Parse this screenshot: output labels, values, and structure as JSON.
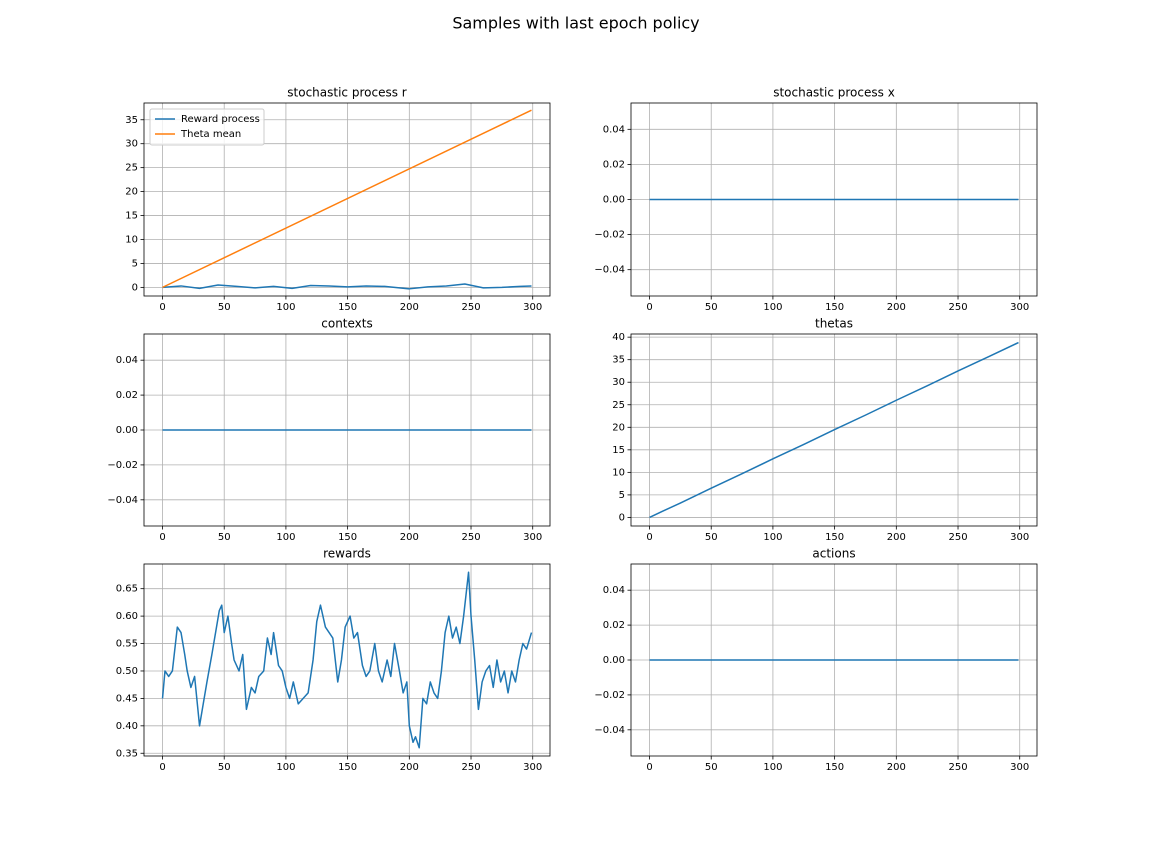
{
  "title": "Samples with last epoch policy",
  "chart_data": [
    {
      "type": "line",
      "title": "stochastic process r",
      "xlim": [
        -15,
        314
      ],
      "ylim": [
        -1.8,
        38.5
      ],
      "xticks": [
        0,
        50,
        100,
        150,
        200,
        250,
        300
      ],
      "yticks": [
        0,
        5,
        10,
        15,
        20,
        25,
        30,
        35
      ],
      "grid": true,
      "legend": "upper left",
      "series": [
        {
          "name": "Reward process",
          "color": "#1f77b4",
          "x": [
            0,
            15,
            30,
            45,
            60,
            75,
            90,
            105,
            120,
            135,
            150,
            165,
            180,
            200,
            215,
            230,
            245,
            260,
            275,
            290,
            299
          ],
          "values": [
            0,
            0.3,
            -0.2,
            0.5,
            0.2,
            -0.1,
            0.2,
            -0.2,
            0.4,
            0.3,
            0.1,
            0.3,
            0.2,
            -0.3,
            0.1,
            0.3,
            0.7,
            -0.1,
            0,
            0.2,
            0.3
          ]
        },
        {
          "name": "Theta mean",
          "color": "#ff7f0e",
          "x": [
            0,
            299
          ],
          "values": [
            0,
            37
          ]
        }
      ]
    },
    {
      "type": "line",
      "title": "stochastic process x",
      "xlim": [
        -15,
        314
      ],
      "ylim": [
        -0.055,
        0.055
      ],
      "xticks": [
        0,
        50,
        100,
        150,
        200,
        250,
        300
      ],
      "yticks": [
        {
          "value": -0.04,
          "label": "−0.04"
        },
        {
          "value": -0.02,
          "label": "−0.02"
        },
        {
          "value": 0,
          "label": "0.00"
        },
        0.02,
        0.04
      ],
      "grid": true,
      "series": [
        {
          "color": "#1f77b4",
          "x": [
            0,
            299
          ],
          "values": [
            0,
            0
          ]
        }
      ]
    },
    {
      "type": "line",
      "title": "contexts",
      "xlim": [
        -15,
        314
      ],
      "ylim": [
        -0.055,
        0.055
      ],
      "xticks": [
        0,
        50,
        100,
        150,
        200,
        250,
        300
      ],
      "yticks": [
        {
          "value": -0.04,
          "label": "−0.04"
        },
        {
          "value": -0.02,
          "label": "−0.02"
        },
        {
          "value": 0,
          "label": "0.00"
        },
        0.02,
        0.04
      ],
      "grid": true,
      "series": [
        {
          "color": "#1f77b4",
          "x": [
            0,
            299
          ],
          "values": [
            0,
            0
          ]
        }
      ]
    },
    {
      "type": "line",
      "title": "thetas",
      "xlim": [
        -15,
        314
      ],
      "ylim": [
        -1.9,
        40.7
      ],
      "xticks": [
        0,
        50,
        100,
        150,
        200,
        250,
        300
      ],
      "yticks": [
        0,
        5,
        10,
        15,
        20,
        25,
        30,
        35,
        40
      ],
      "grid": true,
      "series": [
        {
          "color": "#1f77b4",
          "x": [
            0,
            10,
            25,
            50,
            75,
            100,
            125,
            150,
            175,
            200,
            225,
            250,
            275,
            299
          ],
          "values": [
            0,
            1.3,
            3.2,
            6.5,
            9.7,
            13,
            16.2,
            19.5,
            22.7,
            26,
            29.2,
            32.5,
            35.7,
            38.8
          ]
        }
      ]
    },
    {
      "type": "line",
      "title": "rewards",
      "xlim": [
        -15,
        314
      ],
      "ylim": [
        0.345,
        0.695
      ],
      "xticks": [
        0,
        50,
        100,
        150,
        200,
        250,
        300
      ],
      "yticks": [
        0.35,
        {
          "value": 0.4,
          "label": "0.40"
        },
        0.45,
        {
          "value": 0.5,
          "label": "0.50"
        },
        0.55,
        {
          "value": 0.6,
          "label": "0.60"
        },
        0.65
      ],
      "grid": true,
      "series": [
        {
          "color": "#1f77b4",
          "x": [
            0,
            2,
            5,
            8,
            12,
            15,
            18,
            20,
            23,
            26,
            30,
            33,
            36,
            40,
            43,
            46,
            48,
            50,
            53,
            56,
            58,
            62,
            65,
            68,
            72,
            75,
            78,
            82,
            85,
            88,
            90,
            94,
            97,
            100,
            103,
            106,
            110,
            114,
            118,
            122,
            125,
            128,
            132,
            135,
            138,
            142,
            145,
            148,
            152,
            155,
            158,
            162,
            165,
            168,
            172,
            175,
            178,
            182,
            185,
            188,
            192,
            195,
            198,
            200,
            203,
            205,
            208,
            211,
            214,
            217,
            220,
            223,
            226,
            229,
            232,
            235,
            238,
            241,
            244,
            246,
            248,
            250,
            253,
            256,
            259,
            262,
            265,
            268,
            271,
            274,
            277,
            280,
            283,
            286,
            289,
            292,
            295,
            299
          ],
          "values": [
            0.45,
            0.5,
            0.49,
            0.5,
            0.58,
            0.57,
            0.53,
            0.5,
            0.47,
            0.49,
            0.4,
            0.44,
            0.48,
            0.53,
            0.57,
            0.61,
            0.62,
            0.57,
            0.6,
            0.55,
            0.52,
            0.5,
            0.53,
            0.43,
            0.47,
            0.46,
            0.49,
            0.5,
            0.56,
            0.53,
            0.57,
            0.51,
            0.5,
            0.47,
            0.45,
            0.48,
            0.44,
            0.45,
            0.46,
            0.52,
            0.59,
            0.62,
            0.58,
            0.57,
            0.56,
            0.48,
            0.52,
            0.58,
            0.6,
            0.56,
            0.57,
            0.51,
            0.49,
            0.5,
            0.55,
            0.5,
            0.48,
            0.52,
            0.49,
            0.55,
            0.5,
            0.46,
            0.48,
            0.4,
            0.37,
            0.38,
            0.36,
            0.45,
            0.44,
            0.48,
            0.46,
            0.45,
            0.5,
            0.57,
            0.6,
            0.56,
            0.58,
            0.55,
            0.6,
            0.64,
            0.68,
            0.6,
            0.52,
            0.43,
            0.48,
            0.5,
            0.51,
            0.47,
            0.52,
            0.48,
            0.5,
            0.46,
            0.5,
            0.48,
            0.52,
            0.55,
            0.54,
            0.57
          ]
        }
      ]
    },
    {
      "type": "line",
      "title": "actions",
      "xlim": [
        -15,
        314
      ],
      "ylim": [
        -0.055,
        0.055
      ],
      "xticks": [
        0,
        50,
        100,
        150,
        200,
        250,
        300
      ],
      "yticks": [
        {
          "value": -0.04,
          "label": "−0.04"
        },
        {
          "value": -0.02,
          "label": "−0.02"
        },
        {
          "value": 0,
          "label": "0.00"
        },
        0.02,
        0.04
      ],
      "grid": true,
      "series": [
        {
          "color": "#1f77b4",
          "x": [
            0,
            299
          ],
          "values": [
            0,
            0
          ]
        }
      ]
    }
  ]
}
